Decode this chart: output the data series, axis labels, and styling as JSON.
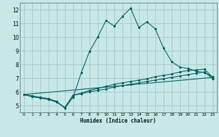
{
  "xlabel": "Humidex (Indice chaleur)",
  "background_color": "#c8e8e8",
  "grid_color": "#a0c8c8",
  "line_color": "#006060",
  "xlim": [
    -0.5,
    23.5
  ],
  "ylim": [
    4.5,
    12.5
  ],
  "yticks": [
    5,
    6,
    7,
    8,
    9,
    10,
    11,
    12
  ],
  "xticks": [
    0,
    1,
    2,
    3,
    4,
    5,
    6,
    7,
    8,
    9,
    10,
    11,
    12,
    13,
    14,
    15,
    16,
    17,
    18,
    19,
    20,
    21,
    22,
    23
  ],
  "series": [
    {
      "x": [
        0,
        1,
        2,
        3,
        4,
        5,
        6,
        7,
        8,
        9,
        10,
        11,
        12,
        13,
        14,
        15,
        16,
        17,
        18,
        19,
        20,
        21,
        22,
        23
      ],
      "y": [
        5.8,
        5.7,
        5.6,
        5.5,
        5.3,
        4.8,
        5.6,
        7.4,
        8.95,
        10.0,
        11.2,
        10.8,
        11.5,
        12.1,
        10.7,
        11.1,
        10.6,
        9.2,
        8.2,
        7.8,
        7.7,
        7.5,
        7.4,
        7.1
      ],
      "has_markers": true
    },
    {
      "x": [
        0,
        1,
        2,
        3,
        4,
        5,
        6,
        7,
        8,
        9,
        10,
        11,
        12,
        13,
        14,
        15,
        16,
        17,
        18,
        19,
        20,
        21,
        22,
        23
      ],
      "y": [
        5.8,
        5.65,
        5.55,
        5.45,
        5.25,
        4.85,
        5.75,
        5.9,
        6.1,
        6.25,
        6.4,
        6.55,
        6.65,
        6.75,
        6.85,
        6.95,
        7.1,
        7.2,
        7.3,
        7.45,
        7.55,
        7.6,
        7.65,
        7.05
      ],
      "has_markers": true
    },
    {
      "x": [
        0,
        1,
        2,
        3,
        4,
        5,
        6,
        7,
        8,
        9,
        10,
        11,
        12,
        13,
        14,
        15,
        16,
        17,
        18,
        19,
        20,
        21,
        22,
        23
      ],
      "y": [
        5.8,
        5.65,
        5.55,
        5.45,
        5.25,
        4.85,
        5.75,
        5.85,
        6.0,
        6.1,
        6.2,
        6.35,
        6.45,
        6.55,
        6.65,
        6.75,
        6.85,
        6.95,
        7.05,
        7.15,
        7.25,
        7.35,
        7.45,
        6.95
      ],
      "has_markers": true
    },
    {
      "x": [
        0,
        23
      ],
      "y": [
        5.8,
        7.05
      ],
      "has_markers": false
    }
  ]
}
